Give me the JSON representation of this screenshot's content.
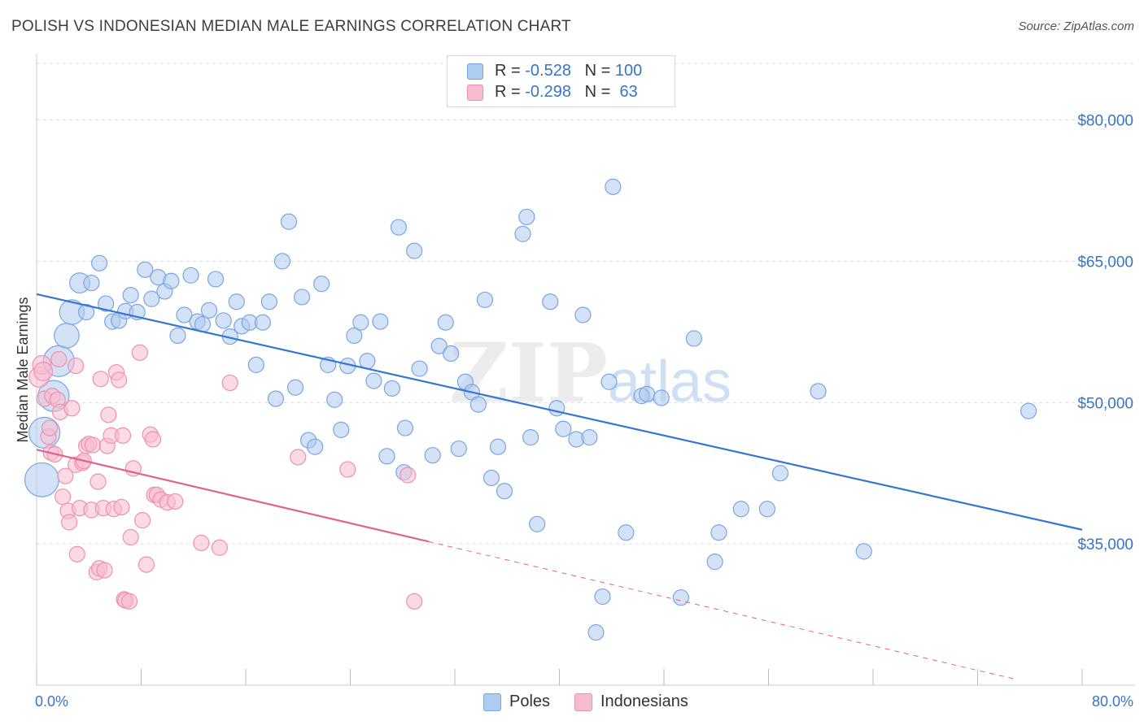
{
  "header": {
    "title": "POLISH VS INDONESIAN MEDIAN MALE EARNINGS CORRELATION CHART",
    "source": "Source: ZipAtlas.com"
  },
  "watermark": {
    "zip": "ZIP",
    "atlas": "atlas"
  },
  "legend": {
    "rows": [
      {
        "r_label": "R = ",
        "r_value": "-0.528",
        "n_label": "N = ",
        "n_value": "100",
        "color": "#aecbf1"
      },
      {
        "r_label": "R = ",
        "r_value": "-0.298",
        "n_label": "N = ",
        "n_value": " 63",
        "color": "#f7bcd0"
      }
    ]
  },
  "bottom_legend": {
    "items": [
      "Poles",
      "Indonesians"
    ]
  },
  "colors": {
    "blue_fill": "#aecbf1",
    "blue_stroke": "#7aa6e0",
    "blue_line": "#3676d0",
    "pink_fill": "#f7bcd0",
    "pink_stroke": "#ee90ae",
    "pink_line": "#e0628e",
    "tick_label": "#3874c8",
    "grid": "#dddddd"
  },
  "chart_data": {
    "type": "scatter",
    "title": "POLISH VS INDONESIAN MEDIAN MALE EARNINGS CORRELATION CHART",
    "ylabel": "Median Male Earnings",
    "xlabel": "",
    "xlim": [
      0,
      80
    ],
    "ylim": [
      20000,
      86000
    ],
    "x_tick_labels": [
      "0.0%",
      "80.0%"
    ],
    "y_ticks": [
      35000,
      50000,
      65000,
      80000
    ],
    "y_tick_labels": [
      "$35,000",
      "$50,000",
      "$65,000",
      "$80,000"
    ],
    "grid": true,
    "legend_position": "top-center",
    "series": [
      {
        "name": "Poles",
        "r": -0.528,
        "n": 100,
        "trend": {
          "x": [
            0,
            80
          ],
          "y": [
            61500,
            36500
          ],
          "dashed_from": null
        },
        "points": [
          {
            "x": 0.4,
            "y": 41800,
            "s": 2.2
          },
          {
            "x": 0.6,
            "y": 46800,
            "s": 2
          },
          {
            "x": 1.3,
            "y": 50700,
            "s": 2
          },
          {
            "x": 1.7,
            "y": 54400,
            "s": 2
          },
          {
            "x": 2.3,
            "y": 57100,
            "s": 1.6
          },
          {
            "x": 2.7,
            "y": 59600,
            "s": 1.6
          },
          {
            "x": 3.3,
            "y": 62700,
            "s": 1.3
          },
          {
            "x": 3.8,
            "y": 59600,
            "s": 1
          },
          {
            "x": 4.2,
            "y": 62700,
            "s": 1
          },
          {
            "x": 4.8,
            "y": 64800,
            "s": 1
          },
          {
            "x": 5.3,
            "y": 60500,
            "s": 1
          },
          {
            "x": 5.8,
            "y": 58600,
            "s": 1
          },
          {
            "x": 6.3,
            "y": 58700,
            "s": 1
          },
          {
            "x": 6.8,
            "y": 59700,
            "s": 1
          },
          {
            "x": 7.2,
            "y": 61400,
            "s": 1
          },
          {
            "x": 7.7,
            "y": 59600,
            "s": 1
          },
          {
            "x": 8.3,
            "y": 64100,
            "s": 1
          },
          {
            "x": 8.8,
            "y": 61000,
            "s": 1
          },
          {
            "x": 9.3,
            "y": 63300,
            "s": 1
          },
          {
            "x": 9.8,
            "y": 61800,
            "s": 1
          },
          {
            "x": 10.3,
            "y": 62900,
            "s": 1
          },
          {
            "x": 10.8,
            "y": 57100,
            "s": 1
          },
          {
            "x": 11.3,
            "y": 59300,
            "s": 1
          },
          {
            "x": 11.8,
            "y": 63500,
            "s": 1
          },
          {
            "x": 12.3,
            "y": 58600,
            "s": 1
          },
          {
            "x": 12.7,
            "y": 58300,
            "s": 1
          },
          {
            "x": 13.2,
            "y": 59800,
            "s": 1
          },
          {
            "x": 13.7,
            "y": 63100,
            "s": 1
          },
          {
            "x": 14.3,
            "y": 58700,
            "s": 1
          },
          {
            "x": 14.8,
            "y": 57000,
            "s": 1
          },
          {
            "x": 15.3,
            "y": 60700,
            "s": 1
          },
          {
            "x": 15.7,
            "y": 58100,
            "s": 1
          },
          {
            "x": 16.3,
            "y": 58500,
            "s": 1
          },
          {
            "x": 16.8,
            "y": 54000,
            "s": 1
          },
          {
            "x": 17.3,
            "y": 58500,
            "s": 1
          },
          {
            "x": 17.8,
            "y": 60700,
            "s": 1
          },
          {
            "x": 18.3,
            "y": 50400,
            "s": 1
          },
          {
            "x": 18.8,
            "y": 65000,
            "s": 1
          },
          {
            "x": 19.3,
            "y": 69200,
            "s": 1
          },
          {
            "x": 19.8,
            "y": 51600,
            "s": 1
          },
          {
            "x": 20.3,
            "y": 61200,
            "s": 1
          },
          {
            "x": 20.8,
            "y": 46000,
            "s": 1
          },
          {
            "x": 21.3,
            "y": 45300,
            "s": 1
          },
          {
            "x": 21.8,
            "y": 62600,
            "s": 1
          },
          {
            "x": 22.3,
            "y": 54000,
            "s": 1
          },
          {
            "x": 22.8,
            "y": 50300,
            "s": 1
          },
          {
            "x": 23.3,
            "y": 47100,
            "s": 1
          },
          {
            "x": 23.8,
            "y": 53900,
            "s": 1
          },
          {
            "x": 24.3,
            "y": 57100,
            "s": 1
          },
          {
            "x": 24.8,
            "y": 58500,
            "s": 1
          },
          {
            "x": 25.3,
            "y": 54400,
            "s": 1
          },
          {
            "x": 25.8,
            "y": 52300,
            "s": 1
          },
          {
            "x": 26.3,
            "y": 58600,
            "s": 1
          },
          {
            "x": 26.8,
            "y": 44300,
            "s": 1
          },
          {
            "x": 27.2,
            "y": 51500,
            "s": 1
          },
          {
            "x": 27.7,
            "y": 68600,
            "s": 1
          },
          {
            "x": 28.2,
            "y": 47300,
            "s": 1
          },
          {
            "x": 28.1,
            "y": 42600,
            "s": 1
          },
          {
            "x": 28.9,
            "y": 66100,
            "s": 1
          },
          {
            "x": 29.3,
            "y": 53600,
            "s": 1
          },
          {
            "x": 30.3,
            "y": 44400,
            "s": 1
          },
          {
            "x": 30.8,
            "y": 56000,
            "s": 1
          },
          {
            "x": 31.3,
            "y": 58500,
            "s": 1
          },
          {
            "x": 31.7,
            "y": 55200,
            "s": 1
          },
          {
            "x": 32.3,
            "y": 45100,
            "s": 1
          },
          {
            "x": 32.8,
            "y": 52200,
            "s": 1
          },
          {
            "x": 33.3,
            "y": 51100,
            "s": 1
          },
          {
            "x": 33.8,
            "y": 49800,
            "s": 1
          },
          {
            "x": 34.3,
            "y": 60900,
            "s": 1
          },
          {
            "x": 34.8,
            "y": 42000,
            "s": 1
          },
          {
            "x": 35.3,
            "y": 45300,
            "s": 1
          },
          {
            "x": 35.8,
            "y": 40600,
            "s": 1
          },
          {
            "x": 37.2,
            "y": 67900,
            "s": 1
          },
          {
            "x": 37.5,
            "y": 69700,
            "s": 1
          },
          {
            "x": 37.8,
            "y": 46300,
            "s": 1
          },
          {
            "x": 38.3,
            "y": 37100,
            "s": 1
          },
          {
            "x": 39.3,
            "y": 60700,
            "s": 1
          },
          {
            "x": 39.8,
            "y": 49400,
            "s": 1
          },
          {
            "x": 40.3,
            "y": 47200,
            "s": 1
          },
          {
            "x": 41.3,
            "y": 46100,
            "s": 1
          },
          {
            "x": 41.8,
            "y": 59300,
            "s": 1
          },
          {
            "x": 42.3,
            "y": 46300,
            "s": 1
          },
          {
            "x": 42.8,
            "y": 25600,
            "s": 1
          },
          {
            "x": 43.3,
            "y": 29400,
            "s": 1
          },
          {
            "x": 43.8,
            "y": 52200,
            "s": 1
          },
          {
            "x": 44.1,
            "y": 72900,
            "s": 1
          },
          {
            "x": 45.1,
            "y": 36200,
            "s": 1
          },
          {
            "x": 46.3,
            "y": 50700,
            "s": 1
          },
          {
            "x": 46.7,
            "y": 50900,
            "s": 1
          },
          {
            "x": 47.8,
            "y": 50500,
            "s": 1
          },
          {
            "x": 49.3,
            "y": 29300,
            "s": 1
          },
          {
            "x": 50.3,
            "y": 56800,
            "s": 1
          },
          {
            "x": 51.9,
            "y": 33100,
            "s": 1
          },
          {
            "x": 52.2,
            "y": 36200,
            "s": 1
          },
          {
            "x": 53.9,
            "y": 38700,
            "s": 1
          },
          {
            "x": 55.9,
            "y": 38700,
            "s": 1
          },
          {
            "x": 56.9,
            "y": 42500,
            "s": 1
          },
          {
            "x": 59.8,
            "y": 51200,
            "s": 1
          },
          {
            "x": 63.3,
            "y": 34200,
            "s": 1
          },
          {
            "x": 75.9,
            "y": 49100,
            "s": 1
          }
        ]
      },
      {
        "name": "Indonesians",
        "r": -0.298,
        "n": 63,
        "trend": {
          "x": [
            0,
            75
          ],
          "y": [
            45000,
            20600
          ],
          "dashed_from": 30
        },
        "points": [
          {
            "x": 0.2,
            "y": 52700,
            "s": 1.3
          },
          {
            "x": 0.4,
            "y": 54000,
            "s": 1.2
          },
          {
            "x": 0.5,
            "y": 53300,
            "s": 1.2
          },
          {
            "x": 0.6,
            "y": 50400,
            "s": 1
          },
          {
            "x": 0.9,
            "y": 46400,
            "s": 1
          },
          {
            "x": 1.0,
            "y": 47300,
            "s": 1
          },
          {
            "x": 1.1,
            "y": 44700,
            "s": 1
          },
          {
            "x": 1.2,
            "y": 50700,
            "s": 1
          },
          {
            "x": 1.4,
            "y": 44500,
            "s": 1
          },
          {
            "x": 1.6,
            "y": 50300,
            "s": 1
          },
          {
            "x": 1.8,
            "y": 49000,
            "s": 1
          },
          {
            "x": 2.0,
            "y": 40000,
            "s": 1
          },
          {
            "x": 2.2,
            "y": 42200,
            "s": 1
          },
          {
            "x": 2.4,
            "y": 38500,
            "s": 1
          },
          {
            "x": 2.5,
            "y": 37300,
            "s": 1
          },
          {
            "x": 2.7,
            "y": 49400,
            "s": 1
          },
          {
            "x": 3.0,
            "y": 43400,
            "s": 1
          },
          {
            "x": 3.1,
            "y": 33900,
            "s": 1
          },
          {
            "x": 3.3,
            "y": 38800,
            "s": 1
          },
          {
            "x": 3.5,
            "y": 43600,
            "s": 1
          },
          {
            "x": 3.6,
            "y": 43800,
            "s": 1
          },
          {
            "x": 3.8,
            "y": 45400,
            "s": 1
          },
          {
            "x": 4.0,
            "y": 45600,
            "s": 1
          },
          {
            "x": 4.2,
            "y": 38600,
            "s": 1
          },
          {
            "x": 4.3,
            "y": 45500,
            "s": 1
          },
          {
            "x": 4.6,
            "y": 32000,
            "s": 1
          },
          {
            "x": 4.7,
            "y": 41600,
            "s": 1
          },
          {
            "x": 4.8,
            "y": 32400,
            "s": 1
          },
          {
            "x": 4.9,
            "y": 52500,
            "s": 1
          },
          {
            "x": 5.1,
            "y": 38800,
            "s": 1
          },
          {
            "x": 5.2,
            "y": 32200,
            "s": 1
          },
          {
            "x": 5.4,
            "y": 45400,
            "s": 1
          },
          {
            "x": 5.5,
            "y": 48700,
            "s": 1
          },
          {
            "x": 5.7,
            "y": 46500,
            "s": 1
          },
          {
            "x": 5.9,
            "y": 38700,
            "s": 1
          },
          {
            "x": 6.1,
            "y": 53200,
            "s": 1
          },
          {
            "x": 6.3,
            "y": 52400,
            "s": 1
          },
          {
            "x": 6.5,
            "y": 38900,
            "s": 1
          },
          {
            "x": 6.6,
            "y": 46500,
            "s": 1
          },
          {
            "x": 6.7,
            "y": 29100,
            "s": 1
          },
          {
            "x": 6.8,
            "y": 29000,
            "s": 1
          },
          {
            "x": 7.1,
            "y": 28900,
            "s": 1
          },
          {
            "x": 7.2,
            "y": 35700,
            "s": 1
          },
          {
            "x": 7.4,
            "y": 43000,
            "s": 1
          },
          {
            "x": 7.9,
            "y": 55300,
            "s": 1
          },
          {
            "x": 8.1,
            "y": 37500,
            "s": 1
          },
          {
            "x": 8.4,
            "y": 32800,
            "s": 1
          },
          {
            "x": 8.7,
            "y": 46600,
            "s": 1
          },
          {
            "x": 8.9,
            "y": 46100,
            "s": 1
          },
          {
            "x": 9.0,
            "y": 40200,
            "s": 1
          },
          {
            "x": 9.2,
            "y": 40200,
            "s": 1
          },
          {
            "x": 9.5,
            "y": 39700,
            "s": 1
          },
          {
            "x": 10.0,
            "y": 39400,
            "s": 1
          },
          {
            "x": 10.6,
            "y": 39500,
            "s": 1
          },
          {
            "x": 12.6,
            "y": 35100,
            "s": 1
          },
          {
            "x": 14.0,
            "y": 34600,
            "s": 1
          },
          {
            "x": 14.8,
            "y": 52100,
            "s": 1
          },
          {
            "x": 20.0,
            "y": 44200,
            "s": 1
          },
          {
            "x": 23.8,
            "y": 42900,
            "s": 1
          },
          {
            "x": 28.4,
            "y": 42300,
            "s": 1
          },
          {
            "x": 28.9,
            "y": 28900,
            "s": 1
          },
          {
            "x": 1.7,
            "y": 54600,
            "s": 1
          },
          {
            "x": 3.0,
            "y": 53900,
            "s": 1
          }
        ]
      }
    ]
  }
}
